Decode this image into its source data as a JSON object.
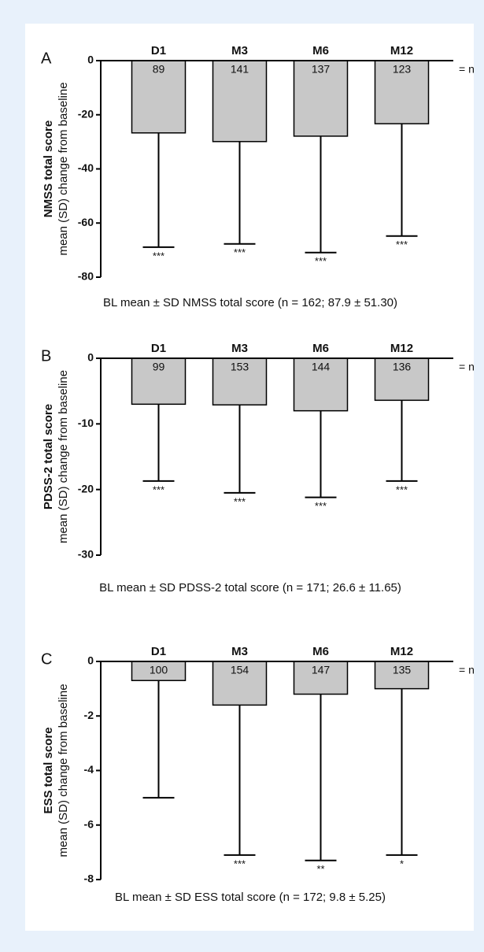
{
  "chart_data": [
    {
      "type": "bar",
      "panel_label": "A",
      "ylabel": "NMSS total score",
      "ylabel_sub": "mean (SD) change from baseline",
      "categories": [
        "D1",
        "M3",
        "M6",
        "M12"
      ],
      "values": [
        -26.7,
        -29.9,
        -27.9,
        -23.3
      ],
      "errors": [
        42.2,
        37.8,
        43.0,
        41.5
      ],
      "n_labels": [
        89,
        141,
        137,
        123
      ],
      "n_legend": "= n",
      "significance": [
        "***",
        "***",
        "***",
        "***"
      ],
      "note": "BL mean ± SD NMSS total score (n = 162; 87.9 ± 51.30)",
      "ylim": [
        -80,
        0
      ],
      "yticks": [
        0,
        -20,
        -40,
        -60,
        -80
      ],
      "color": "#c8c8c8"
    },
    {
      "type": "bar",
      "panel_label": "B",
      "ylabel": "PDSS-2 total score",
      "ylabel_sub": "mean (SD) change from baseline",
      "categories": [
        "D1",
        "M3",
        "M6",
        "M12"
      ],
      "values": [
        -7.0,
        -7.1,
        -8.0,
        -6.4
      ],
      "errors": [
        11.7,
        13.4,
        13.2,
        12.3
      ],
      "n_labels": [
        99,
        153,
        144,
        136
      ],
      "n_legend": "= n",
      "significance": [
        "***",
        "***",
        "***",
        "***"
      ],
      "note": "BL mean ± SD PDSS-2 total score (n = 171; 26.6 ± 11.65)",
      "ylim": [
        -30,
        0
      ],
      "yticks": [
        0,
        -10,
        -20,
        -30
      ],
      "color": "#c8c8c8"
    },
    {
      "type": "bar",
      "panel_label": "C",
      "ylabel": "ESS total score",
      "ylabel_sub": "mean (SD) change from baseline",
      "categories": [
        "D1",
        "M3",
        "M6",
        "M12"
      ],
      "values": [
        -0.7,
        -1.6,
        -1.2,
        -1.0
      ],
      "errors": [
        4.3,
        5.5,
        6.1,
        6.1
      ],
      "n_labels": [
        100,
        154,
        147,
        135
      ],
      "n_legend": "= n",
      "significance": [
        null,
        "***",
        "**",
        "*"
      ],
      "note": "BL mean ± SD ESS total score (n = 172; 9.8 ± 5.25)",
      "ylim": [
        -8,
        0
      ],
      "yticks": [
        0,
        -2,
        -4,
        -6,
        -8
      ],
      "color": "#c8c8c8"
    }
  ]
}
